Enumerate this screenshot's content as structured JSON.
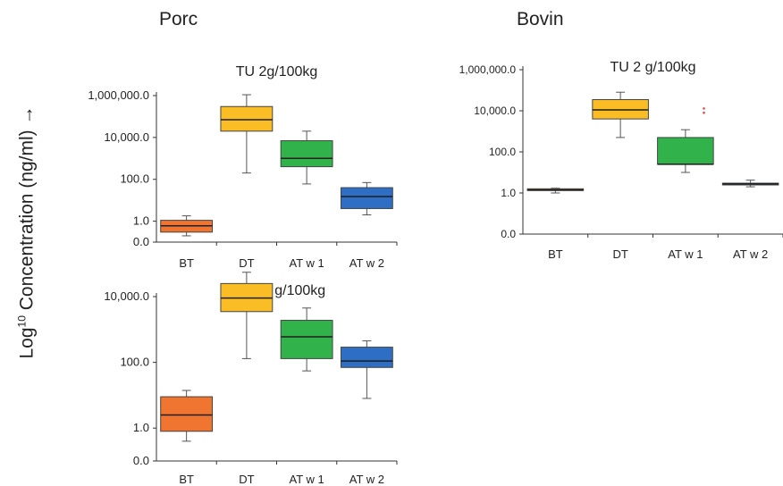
{
  "section_titles": {
    "left": "Porc",
    "right": "Bovin"
  },
  "shared_ylabel": {
    "prefix": "Log",
    "sup": "10",
    "suffix": " Concentration (ng/ml) →"
  },
  "colors": {
    "BT": "#f07530",
    "DT": "#fbbd26",
    "AT w 1": "#31b24a",
    "AT w 2": "#2e6fc5",
    "median": "#1f1f1f",
    "whisker": "#555555",
    "outlier": "#e64545",
    "axis": "#333333"
  },
  "chart_data": [
    {
      "type": "box",
      "title": "TU 2g/100kg",
      "yscale": "log",
      "ylim": [
        0.1,
        2000000
      ],
      "yticks": [
        0.1,
        1,
        100,
        10000,
        1000000
      ],
      "yticklabels": [
        "0.0",
        "1.0",
        "100.0",
        "10,000.0",
        "1,000,000.0"
      ],
      "categories": [
        "BT",
        "DT",
        "AT w 1",
        "AT w 2"
      ],
      "boxes": [
        {
          "category": "BT",
          "whisker_low": 0.2,
          "q1": 0.3,
          "median": 0.6,
          "q3": 1.1,
          "whisker_high": 1.8
        },
        {
          "category": "DT",
          "whisker_low": 200,
          "q1": 20000,
          "median": 70000,
          "q3": 300000,
          "whisker_high": 1100000
        },
        {
          "category": "AT w 1",
          "whisker_low": 60,
          "q1": 400,
          "median": 1000,
          "q3": 7000,
          "whisker_high": 20000
        },
        {
          "category": "AT w 2",
          "whisker_low": 2,
          "q1": 4,
          "median": 15,
          "q3": 40,
          "whisker_high": 70
        }
      ]
    },
    {
      "type": "box",
      "title": "TU 0.2 g/100kg",
      "yscale": "log",
      "ylim": [
        0.1,
        200000
      ],
      "yticks": [
        0.1,
        1,
        100,
        10000
      ],
      "yticklabels": [
        "0.0",
        "1.0",
        "100.0",
        "10,000.0"
      ],
      "categories": [
        "BT",
        "DT",
        "AT w 1",
        "AT w 2"
      ],
      "boxes": [
        {
          "category": "BT",
          "whisker_low": 0.4,
          "q1": 0.8,
          "median": 2.5,
          "q3": 9,
          "whisker_high": 14
        },
        {
          "category": "DT",
          "whisker_low": 130,
          "q1": 3500,
          "median": 9000,
          "q3": 25000,
          "whisker_high": 55000
        },
        {
          "category": "AT w 1",
          "whisker_low": 55,
          "q1": 130,
          "median": 600,
          "q3": 1900,
          "whisker_high": 4500
        },
        {
          "category": "AT w 2",
          "whisker_low": 8,
          "q1": 70,
          "median": 110,
          "q3": 290,
          "whisker_high": 450
        }
      ]
    },
    {
      "type": "box",
      "title": "TU 2 g/100kg",
      "yscale": "log",
      "ylim": [
        0.01,
        2000000
      ],
      "yticks": [
        0.01,
        1,
        100,
        10000,
        1000000
      ],
      "yticklabels": [
        "0.0",
        "1.0",
        "100.0",
        "10,000.0",
        "1,000,000.0"
      ],
      "categories": [
        "BT",
        "DT",
        "AT w 1",
        "AT w 2"
      ],
      "boxes": [
        {
          "category": "BT",
          "whisker_low": 1.0,
          "q1": 1.35,
          "median": 1.4,
          "q3": 1.6,
          "whisker_high": 1.7
        },
        {
          "category": "DT",
          "whisker_low": 500,
          "q1": 4000,
          "median": 11000,
          "q3": 35000,
          "whisker_high": 80000
        },
        {
          "category": "AT w 1",
          "whisker_low": 10,
          "q1": 25,
          "median": 25,
          "q3": 500,
          "whisker_high": 1200,
          "outliers": [
            8000,
            13000
          ]
        },
        {
          "category": "AT w 2",
          "whisker_low": 2.0,
          "q1": 2.6,
          "median": 2.8,
          "q3": 3.0,
          "whisker_high": 4.2
        }
      ]
    }
  ]
}
